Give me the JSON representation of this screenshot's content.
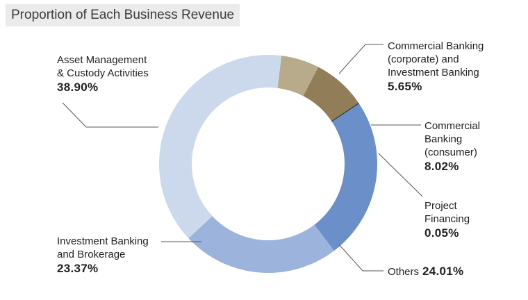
{
  "title": "Proportion of Each Business Revenue",
  "chart_data": {
    "type": "pie",
    "donut": true,
    "title": "Proportion of Each Business Revenue",
    "start_angle_deg": 7,
    "slices": [
      {
        "label": "Commercial Banking\n(corporate) and\nInvestment Banking",
        "value": 5.65,
        "display": "5.65%",
        "color": "#b8ab8c"
      },
      {
        "label": "Commercial\nBanking\n(consumer)",
        "value": 8.02,
        "display": "8.02%",
        "color": "#917e58"
      },
      {
        "label": "Project\nFinancing",
        "value": 0.05,
        "display": "0.05%",
        "color": "#222222"
      },
      {
        "label": "Others",
        "value": 24.01,
        "display": "24.01%",
        "color": "#6a8fc9"
      },
      {
        "label": "Investment Banking\nand Brokerage",
        "value": 23.37,
        "display": "23.37%",
        "color": "#9cb4dc"
      },
      {
        "label": "Asset Management\n& Custody Activities",
        "value": 38.9,
        "display": "38.90%",
        "color": "#ccd9ed"
      }
    ]
  }
}
